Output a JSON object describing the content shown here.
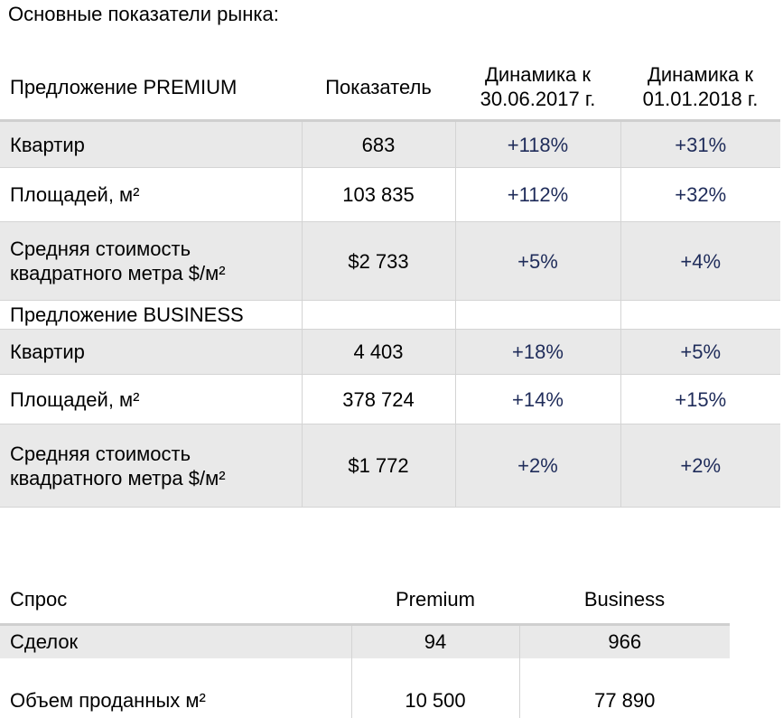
{
  "page_title": "Основные показатели рынка:",
  "supply": {
    "headers": {
      "label": "Предложение PREMIUM",
      "value": "Показатель",
      "dyn1": "Динамика к 30.06.2017 г.",
      "dyn2": "Динамика к 01.01.2018 г."
    },
    "premium_rows": [
      {
        "label": "Квартир",
        "value": "683",
        "dyn1": "+118%",
        "dyn2": "+31%"
      },
      {
        "label": "Площадей, м²",
        "value": "103 835",
        "dyn1": "+112%",
        "dyn2": "+32%"
      },
      {
        "label": "Средняя стоимость квадратного метра $/м²",
        "value": "$2 733",
        "dyn1": "+5%",
        "dyn2": "+4%"
      }
    ],
    "business_header": "Предложение BUSINESS",
    "business_rows": [
      {
        "label": "Квартир",
        "value": "4 403",
        "dyn1": "+18%",
        "dyn2": "+5%"
      },
      {
        "label": "Площадей, м²",
        "value": "378 724",
        "dyn1": "+14%",
        "dyn2": "+15%"
      },
      {
        "label": "Средняя стоимость квадратного метра $/м²",
        "value": "$1 772",
        "dyn1": "+2%",
        "dyn2": "+2%"
      }
    ]
  },
  "demand": {
    "headers": {
      "label": "Спрос",
      "premium": "Premium",
      "business": "Business"
    },
    "rows": [
      {
        "label": "Сделок",
        "premium": "94",
        "business": "966"
      },
      {
        "label": "Объем проданных м²",
        "premium": "10 500",
        "business": "77 890"
      }
    ]
  }
}
